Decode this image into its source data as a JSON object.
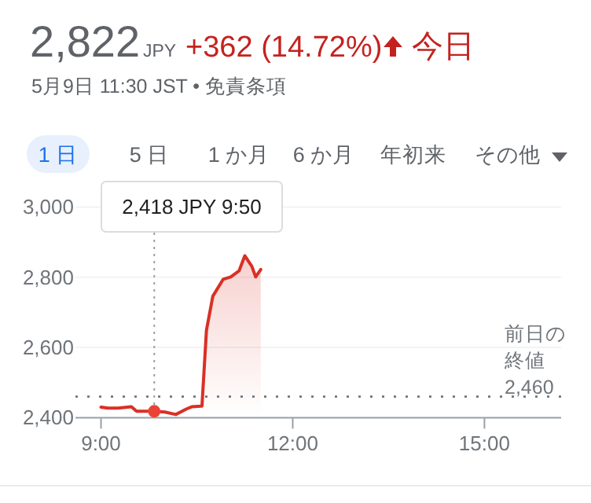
{
  "chart_data": {
    "type": "area",
    "title": "2,822",
    "subtitle": "5月9日 11:30 JST • 免責条項",
    "annotations": [
      "JPY",
      "+362 (14.72%)",
      "今日",
      "1 日",
      "5 日",
      "1 か月",
      "6 か月",
      "年初来",
      "その他",
      {
        "text": "2,418 JPY  9:50",
        "x": 9.833,
        "y": 2418
      }
    ],
    "series": [
      {
        "color": "#d93025",
        "x": [
          9.0,
          9.107,
          9.27,
          9.475,
          9.557,
          9.72,
          9.833,
          10.0,
          10.17,
          10.34,
          10.42,
          10.58,
          10.65,
          10.75,
          10.91,
          11.03,
          11.16,
          11.25,
          11.36,
          11.42,
          11.5
        ],
        "values": [
          2430,
          2427,
          2427,
          2431,
          2418,
          2418,
          2418,
          2416,
          2409,
          2425,
          2431,
          2433,
          2649,
          2746,
          2794,
          2801,
          2818,
          2861,
          2831,
          2801,
          2822
        ]
      }
    ],
    "xlim": [
      8.6,
      16.2
    ],
    "xticks": [
      {
        "value": 9,
        "label": "9:00"
      },
      {
        "value": 12,
        "label": "12:00"
      },
      {
        "value": 15,
        "label": "15:00"
      }
    ],
    "ylim": [
      2400,
      3000
    ],
    "yticks": [
      {
        "value": 2400,
        "label": "2,400"
      },
      {
        "value": 2600,
        "label": "2,600"
      },
      {
        "value": 2800,
        "label": "2,800"
      },
      {
        "value": 3000,
        "label": "3,000"
      }
    ],
    "grid": "y",
    "ref_lines": [
      {
        "axis": "y",
        "value": 2460,
        "label": "前日の終値 2,460",
        "color": "#70757a",
        "line_style": "dotted"
      }
    ]
  }
}
